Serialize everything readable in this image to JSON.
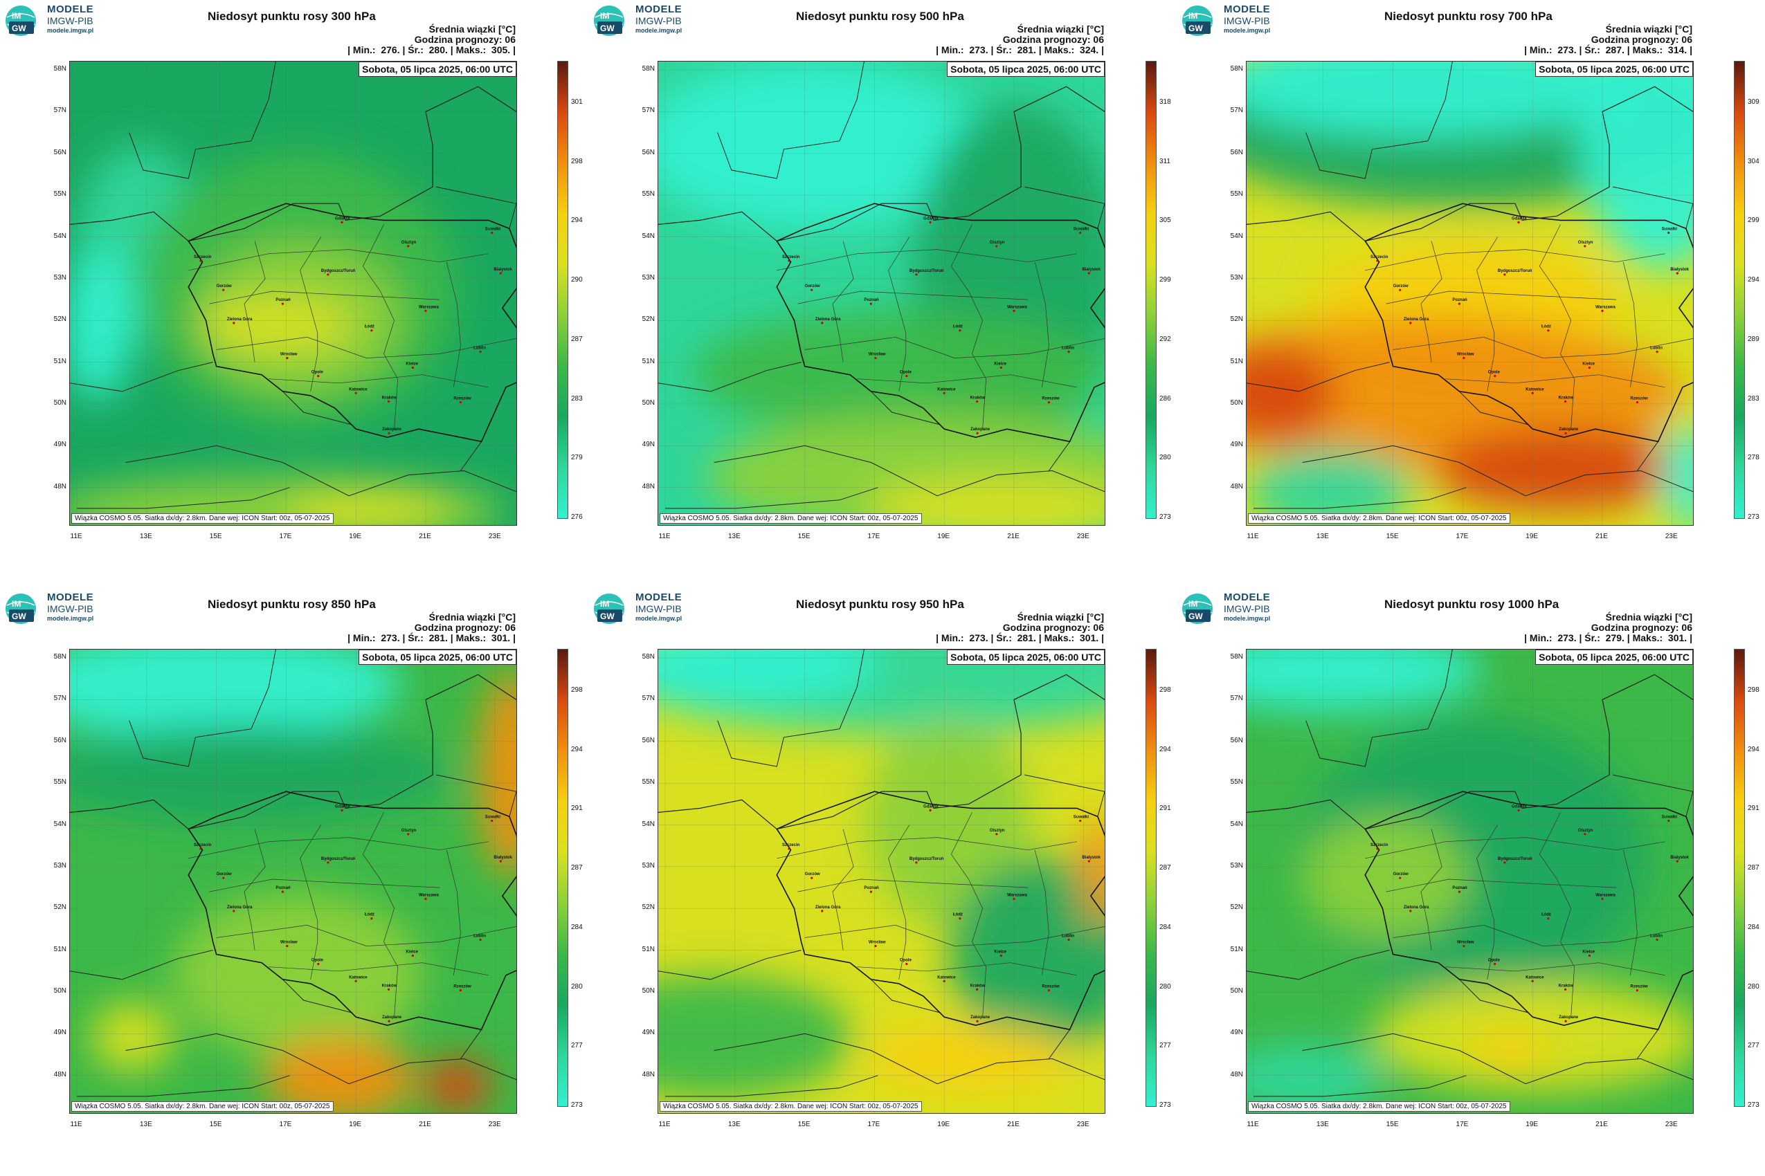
{
  "logo": {
    "line1": "MODELE",
    "line2": "IMGW-PIB",
    "line3": "modele.imgw.pl",
    "badge_top": "IM",
    "badge_bottom": "GW"
  },
  "common": {
    "info_title": "Średnia wiązki [°C]",
    "forecast_hour": "Godzina prognozy: 06",
    "min_label": "| Min.:",
    "mean_label": "| Śr.:",
    "max_label": "| Maks.:",
    "date": "Sobota, 05 lipca 2025, 06:00 UTC",
    "footer": "Wiązka COSMO 5.05. Siatka dx/dy: 2.8km. Dane wej: ICON Start: 00z, 05-07-2025",
    "lat_labels": [
      "58N",
      "57N",
      "56N",
      "55N",
      "54N",
      "53N",
      "52N",
      "51N",
      "50N",
      "49N",
      "48N"
    ],
    "lon_labels": [
      "11E",
      "13E",
      "15E",
      "17E",
      "19E",
      "21E",
      "23E"
    ]
  },
  "cities": [
    {
      "name": "Gdańsk",
      "lon": 18.6,
      "lat": 54.35
    },
    {
      "name": "Olsztyn",
      "lon": 20.5,
      "lat": 53.78
    },
    {
      "name": "Suwałki",
      "lon": 22.9,
      "lat": 54.1
    },
    {
      "name": "Białystok",
      "lon": 23.15,
      "lat": 53.13
    },
    {
      "name": "Szczecin",
      "lon": 14.55,
      "lat": 53.43
    },
    {
      "name": "Bydgoszcz/Toruń",
      "lon": 18.2,
      "lat": 53.1
    },
    {
      "name": "Gorzów",
      "lon": 15.2,
      "lat": 52.73
    },
    {
      "name": "Poznań",
      "lon": 16.9,
      "lat": 52.4
    },
    {
      "name": "Warszawa",
      "lon": 21.0,
      "lat": 52.23
    },
    {
      "name": "Łódź",
      "lon": 19.45,
      "lat": 51.76
    },
    {
      "name": "Zielona Góra",
      "lon": 15.5,
      "lat": 51.94
    },
    {
      "name": "Lublin",
      "lon": 22.57,
      "lat": 51.25
    },
    {
      "name": "Wrocław",
      "lon": 17.03,
      "lat": 51.1
    },
    {
      "name": "Kielce",
      "lon": 20.63,
      "lat": 50.87
    },
    {
      "name": "Opole",
      "lon": 17.92,
      "lat": 50.67
    },
    {
      "name": "Rzeszów",
      "lon": 22.0,
      "lat": 50.04
    },
    {
      "name": "Katowice",
      "lon": 19.0,
      "lat": 50.26
    },
    {
      "name": "Kraków",
      "lon": 19.94,
      "lat": 50.06
    },
    {
      "name": "Zakopane",
      "lon": 19.95,
      "lat": 49.3
    }
  ],
  "panels": [
    {
      "title": "Niedosyt punktu rosy 300 hPa",
      "min": "276.",
      "mean": "280.",
      "max": "305.",
      "cbar": [
        "301",
        "298",
        "294",
        "290",
        "287",
        "283",
        "279",
        "276"
      ]
    },
    {
      "title": "Niedosyt punktu rosy 500 hPa",
      "min": "273.",
      "mean": "281.",
      "max": "324.",
      "cbar": [
        "318",
        "311",
        "305",
        "299",
        "292",
        "286",
        "280",
        "273"
      ]
    },
    {
      "title": "Niedosyt punktu rosy 700 hPa",
      "min": "273.",
      "mean": "287.",
      "max": "314.",
      "cbar": [
        "309",
        "304",
        "299",
        "294",
        "289",
        "283",
        "278",
        "273"
      ]
    },
    {
      "title": "Niedosyt punktu rosy 850 hPa",
      "min": "273.",
      "mean": "281.",
      "max": "301.",
      "cbar": [
        "298",
        "294",
        "291",
        "287",
        "284",
        "280",
        "277",
        "273"
      ]
    },
    {
      "title": "Niedosyt punktu rosy 950 hPa",
      "min": "273.",
      "mean": "281.",
      "max": "301.",
      "cbar": [
        "298",
        "294",
        "291",
        "287",
        "284",
        "280",
        "277",
        "273"
      ]
    },
    {
      "title": "Niedosyt punktu rosy 1000 hPa",
      "min": "273.",
      "mean": "279.",
      "max": "301.",
      "cbar": [
        "298",
        "294",
        "291",
        "287",
        "284",
        "280",
        "277",
        "273"
      ]
    }
  ],
  "colors": {
    "c1": "#33f0d0",
    "c2": "#2fd69a",
    "c3": "#1aa860",
    "c4": "#3cb848",
    "c5": "#8cd03a",
    "c6": "#d8e020",
    "c7": "#f5d010",
    "c8": "#f09010",
    "c9": "#d84a10",
    "c10": "#5a1a10"
  }
}
